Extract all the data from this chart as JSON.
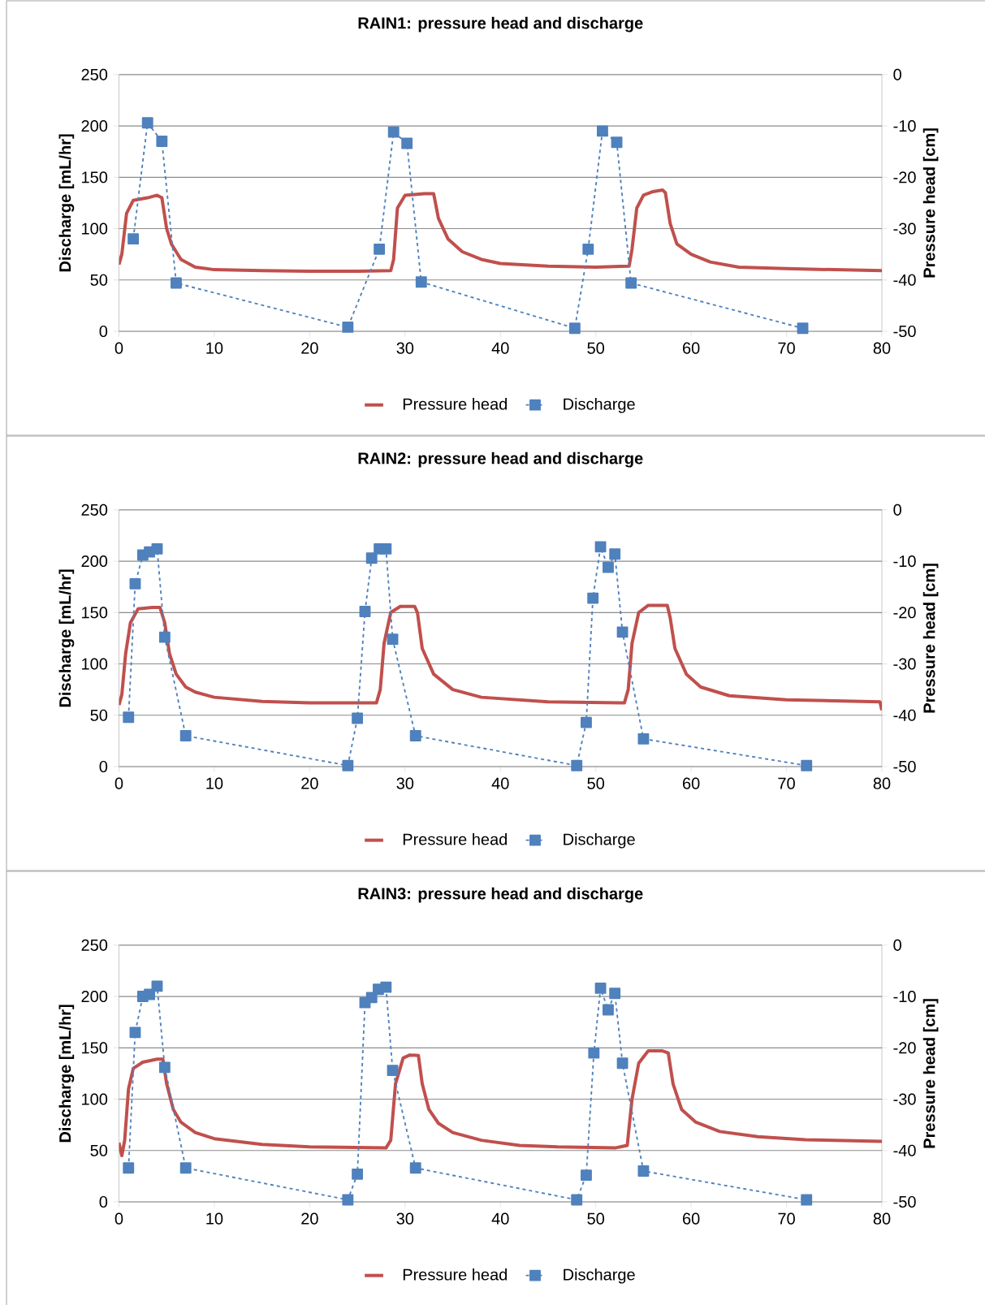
{
  "chart_data": [
    {
      "type": "line",
      "title": "RAIN1: pressure head and discharge",
      "ylabel": "Discharge [mL/hr]",
      "y2label": "Pressure head [cm]",
      "xlim": [
        0,
        80
      ],
      "xticks": [
        0,
        10,
        20,
        30,
        40,
        50,
        60,
        70,
        80
      ],
      "ylim": [
        0,
        250
      ],
      "yticks": [
        0,
        50,
        100,
        150,
        200,
        250
      ],
      "y2lim": [
        -50,
        0
      ],
      "y2ticks": [
        -50,
        -40,
        -30,
        -20,
        -10,
        0
      ],
      "grid": "y",
      "legend": "bottom",
      "series": [
        {
          "name": "Pressure head",
          "color": "#c0504d",
          "axis": "y2",
          "marker": "none",
          "line_style": "solid",
          "x": [
            0,
            0.3,
            0.8,
            1.5,
            3,
            4,
            4.5,
            5,
            5.5,
            6.5,
            8,
            10,
            15,
            20,
            25,
            28.5,
            28.8,
            29.2,
            30,
            32,
            33,
            33.5,
            34.5,
            36,
            38,
            40,
            45,
            50,
            53.5,
            53.8,
            54.3,
            55,
            56,
            57,
            57.3,
            57.8,
            58.5,
            60,
            62,
            65,
            70,
            75,
            80
          ],
          "values": [
            -37,
            -35,
            -27,
            -24.5,
            -24,
            -23.5,
            -24,
            -30,
            -33,
            -36,
            -37.5,
            -38,
            -38.2,
            -38.3,
            -38.3,
            -38.2,
            -36,
            -26,
            -23.5,
            -23.2,
            -23.2,
            -28,
            -32,
            -34.5,
            -36,
            -36.8,
            -37.3,
            -37.5,
            -37.3,
            -34,
            -26,
            -23.5,
            -22.8,
            -22.5,
            -23,
            -29,
            -33,
            -35,
            -36.5,
            -37.5,
            -37.8,
            -38,
            -38.2
          ]
        },
        {
          "name": "Discharge",
          "color": "#4f81bd",
          "marker": "square",
          "line_style": "dashed",
          "x": [
            1.5,
            3,
            4.5,
            6,
            24,
            27.3,
            28.8,
            30.2,
            31.7,
            47.8,
            49.2,
            50.7,
            52.2,
            53.7,
            71.7
          ],
          "values": [
            90,
            203,
            185,
            47,
            4,
            80,
            194,
            183,
            48,
            3,
            80,
            195,
            184,
            47,
            3
          ]
        }
      ]
    },
    {
      "type": "line",
      "title": "RAIN2: pressure head and discharge",
      "ylabel": "Discharge [mL/hr]",
      "y2label": "Pressure head [cm]",
      "xlim": [
        0,
        80
      ],
      "xticks": [
        0,
        10,
        20,
        30,
        40,
        50,
        60,
        70,
        80
      ],
      "ylim": [
        0,
        250
      ],
      "yticks": [
        0,
        50,
        100,
        150,
        200,
        250
      ],
      "y2lim": [
        -50,
        0
      ],
      "y2ticks": [
        -50,
        -40,
        -30,
        -20,
        -10,
        0
      ],
      "grid": "y",
      "legend": "bottom",
      "series": [
        {
          "name": "Pressure head",
          "color": "#c0504d",
          "axis": "y2",
          "marker": "none",
          "line_style": "solid",
          "x": [
            0,
            0.3,
            0.7,
            1.2,
            2,
            3.5,
            4.3,
            4.8,
            5.3,
            6,
            7,
            8,
            10,
            15,
            20,
            27,
            27.4,
            27.8,
            28.5,
            29.5,
            31,
            31.3,
            31.8,
            33,
            35,
            38,
            45,
            53,
            53.4,
            53.8,
            54.5,
            55.5,
            57.5,
            57.8,
            58.3,
            59.5,
            61,
            64,
            70,
            79.8,
            80
          ],
          "values": [
            -38,
            -36,
            -28,
            -22,
            -19.3,
            -19,
            -19,
            -22,
            -28,
            -32,
            -34.5,
            -35.5,
            -36.5,
            -37.3,
            -37.6,
            -37.6,
            -35,
            -26,
            -20,
            -18.8,
            -18.8,
            -20,
            -27,
            -32,
            -35,
            -36.5,
            -37.4,
            -37.6,
            -35,
            -26,
            -20,
            -18.6,
            -18.6,
            -21,
            -27,
            -32,
            -34.5,
            -36.2,
            -37,
            -37.4,
            -39
          ]
        },
        {
          "name": "Discharge",
          "color": "#4f81bd",
          "marker": "square",
          "line_style": "dashed",
          "x": [
            1.0,
            1.7,
            2.5,
            3.2,
            4.0,
            4.8,
            7.0,
            24,
            25,
            25.8,
            26.5,
            27.3,
            28,
            28.7,
            31.1,
            48,
            49,
            49.7,
            50.5,
            51.3,
            52,
            52.8,
            55,
            72.1
          ],
          "values": [
            48,
            178,
            206,
            209,
            212,
            126,
            30,
            1,
            47,
            151,
            203,
            212,
            212,
            124,
            30,
            1,
            43,
            164,
            214,
            194,
            207,
            131,
            27,
            1
          ]
        }
      ]
    },
    {
      "type": "line",
      "title": "RAIN3: pressure head and discharge",
      "ylabel": "Discharge [mL/hr]",
      "y2label": "Pressure head [cm]",
      "xlim": [
        0,
        80
      ],
      "xticks": [
        0,
        10,
        20,
        30,
        40,
        50,
        60,
        70,
        80
      ],
      "ylim": [
        0,
        250
      ],
      "yticks": [
        0,
        50,
        100,
        150,
        200,
        250
      ],
      "y2lim": [
        -50,
        0
      ],
      "y2ticks": [
        -50,
        -40,
        -30,
        -20,
        -10,
        0
      ],
      "grid": "y",
      "legend": "bottom",
      "series": [
        {
          "name": "Pressure head",
          "color": "#c0504d",
          "axis": "y2",
          "marker": "none",
          "line_style": "solid",
          "x": [
            0,
            0.3,
            0.6,
            1.0,
            1.5,
            2.5,
            4,
            4.6,
            5,
            5.7,
            6.5,
            8,
            10,
            15,
            20,
            28,
            28.5,
            29,
            29.8,
            30.5,
            31.4,
            31.8,
            32.5,
            33.5,
            35,
            38,
            42,
            46,
            52,
            53.3,
            53.8,
            54.5,
            55.5,
            57,
            57.6,
            58.1,
            59,
            60.5,
            63,
            67,
            72,
            80
          ],
          "values": [
            -38.5,
            -41,
            -38,
            -28,
            -24,
            -22.8,
            -22.2,
            -22.2,
            -27,
            -32,
            -34.5,
            -36.5,
            -37.7,
            -38.8,
            -39.3,
            -39.5,
            -38,
            -27,
            -22,
            -21.4,
            -21.5,
            -27,
            -32,
            -34.7,
            -36.5,
            -38,
            -39,
            -39.3,
            -39.5,
            -39,
            -30,
            -23,
            -20.6,
            -20.6,
            -21,
            -27,
            -32,
            -34.5,
            -36.3,
            -37.3,
            -37.9,
            -38.2
          ]
        },
        {
          "name": "Discharge",
          "color": "#4f81bd",
          "marker": "square",
          "line_style": "dashed",
          "x": [
            1.0,
            1.7,
            2.5,
            3.2,
            4.0,
            4.8,
            7,
            24,
            25,
            25.8,
            26.5,
            27.2,
            28,
            28.7,
            31.1,
            48,
            49,
            49.8,
            50.5,
            51.3,
            52,
            52.8,
            55,
            72.1
          ],
          "values": [
            33,
            165,
            200,
            202,
            210,
            131,
            33,
            2,
            27,
            194,
            199,
            207,
            209,
            128,
            33,
            2,
            26,
            145,
            208,
            187,
            203,
            135,
            30,
            2
          ]
        }
      ]
    }
  ]
}
